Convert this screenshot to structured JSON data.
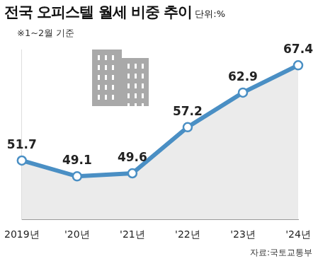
{
  "chart_data": {
    "type": "line",
    "title": "전국 오피스텔 월세 비중 추이",
    "annotations": {
      "unit": "단위:%",
      "note": "※1~2월 기준",
      "source": "자료:국토교통부"
    },
    "categories": [
      "2019년",
      "'20년",
      "'21년",
      "'22년",
      "'23년",
      "'24년"
    ],
    "values": [
      51.7,
      49.1,
      49.6,
      57.2,
      62.9,
      67.4
    ],
    "color": "#4a8fc4",
    "marker": "circle",
    "ylim": [
      42,
      70
    ],
    "grid": false,
    "tick_labels": "x",
    "data_labels": true
  }
}
